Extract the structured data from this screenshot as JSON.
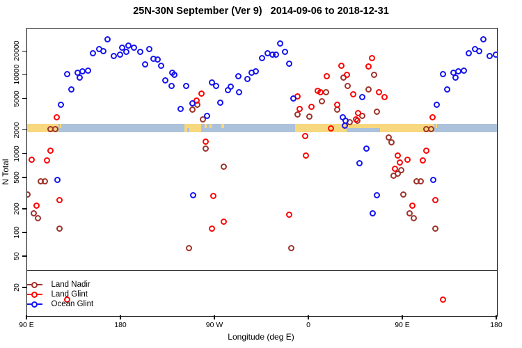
{
  "title": "25N-30N September (Ver 9)   2014-09-06 to 2018-12-31",
  "colors": {
    "land_nadir": "#9E332B",
    "land_glint": "#FB0404",
    "ocean_glint": "#1414F0",
    "band_land": "#F8D87E",
    "band_ocean": "#ACC2DB",
    "axis": "#111111",
    "reference_line": "#2a2a2a"
  },
  "legend": {
    "items": [
      {
        "label": "Land Nadir",
        "series": "land_nadir"
      },
      {
        "label": "Land Glint",
        "series": "land_glint"
      },
      {
        "label": "Ocean Glint",
        "series": "ocean_glint"
      }
    ]
  },
  "chart_data": {
    "type": "scatter",
    "title": "25N-30N September (Ver 9)   2014-09-06 to 2018-12-31",
    "xlabel": "Longitude (deg E)",
    "ylabel": "N Total",
    "y_scale": "log",
    "ylim": [
      9,
      39000
    ],
    "x_axis_unwrapped_deg": [
      90,
      540
    ],
    "x_ticks": [
      {
        "u": 90,
        "label": "90 E"
      },
      {
        "u": 180,
        "label": "180"
      },
      {
        "u": 270,
        "label": "90 W"
      },
      {
        "u": 360,
        "label": "0"
      },
      {
        "u": 450,
        "label": "90 E"
      },
      {
        "u": 540,
        "label": "180"
      }
    ],
    "y_ticks": [
      20,
      50,
      100,
      200,
      500,
      1000,
      2000,
      5000,
      10000,
      20000
    ],
    "reference_line_n": 34,
    "note_points_90E_180_plotted_twice": true,
    "map_band": {
      "n_top": 2455,
      "n_bottom": 1905,
      "land_segments": [
        {
          "from": 90,
          "to": 120
        },
        {
          "from": 121,
          "to": 122.7,
          "half": "top"
        },
        {
          "from": 240.7,
          "to": 256.7
        },
        {
          "from": 260,
          "to": 262,
          "half": "top"
        },
        {
          "from": 264.7,
          "to": 266.7,
          "half": "top"
        },
        {
          "from": 276,
          "to": 278.7,
          "half": "top"
        },
        {
          "from": 346.7,
          "to": 480
        },
        {
          "from": 481,
          "to": 482.7,
          "half": "top"
        }
      ],
      "ocean_cutouts": [
        {
          "from": 243.3,
          "to": 245.3,
          "half": "bottom"
        },
        {
          "from": 396,
          "to": 428,
          "half": "bottom"
        }
      ]
    },
    "series": [
      {
        "name": "Land Nadir",
        "color_key": "land_nadir",
        "points": [
          [
            112,
            2070
          ],
          [
            116.7,
            2070
          ],
          [
            103.3,
            450
          ],
          [
            106.7,
            450
          ],
          [
            90,
            312
          ],
          [
            96,
            180
          ],
          [
            100,
            156
          ],
          [
            121.3,
            113
          ],
          [
            -106.7,
            4210
          ],
          [
            -112,
            3650
          ],
          [
            -102,
            2800
          ],
          [
            -98.7,
            1170
          ],
          [
            -115.3,
            65
          ],
          [
            -82,
            703
          ],
          [
            -16.7,
            65
          ],
          [
            -11.3,
            3230
          ],
          [
            0,
            2980
          ],
          [
            62,
            10100
          ],
          [
            32.7,
            9480
          ],
          [
            36.7,
            7430
          ],
          [
            56.7,
            6710
          ],
          [
            16,
            6190
          ],
          [
            12,
            4660
          ],
          [
            26.7,
            3650
          ],
          [
            51.3,
            3100
          ],
          [
            46,
            2690
          ],
          [
            38.7,
            2540
          ],
          [
            65.3,
            3440
          ],
          [
            76,
            1620
          ],
          [
            78.7,
            1430
          ],
          [
            81.3,
            530
          ],
          [
            85.3,
            574
          ],
          [
            88,
            635
          ]
        ]
      },
      {
        "name": "Land Glint",
        "color_key": "land_glint",
        "points": [
          [
            118,
            2920
          ],
          [
            112,
            1120
          ],
          [
            108.7,
            828
          ],
          [
            94,
            845
          ],
          [
            98.7,
            221
          ],
          [
            121.3,
            260
          ],
          [
            128,
            14.3
          ],
          [
            -103.3,
            5940
          ],
          [
            -108,
            4850
          ],
          [
            -98.7,
            1460
          ],
          [
            -92,
            294
          ],
          [
            -93.3,
            115
          ],
          [
            -18.7,
            173
          ],
          [
            -82,
            141
          ],
          [
            -9.3,
            3800
          ],
          [
            -10.7,
            5480
          ],
          [
            -4,
            1720
          ],
          [
            -3.3,
            973
          ],
          [
            2,
            3960
          ],
          [
            8,
            6320
          ],
          [
            11.3,
            6190
          ],
          [
            16.7,
            9880
          ],
          [
            21.3,
            2150
          ],
          [
            26.7,
            4210
          ],
          [
            31.3,
            13400
          ],
          [
            36,
            10100
          ],
          [
            42,
            5710
          ],
          [
            45.3,
            2750
          ],
          [
            46.7,
            3300
          ],
          [
            56.7,
            12900
          ],
          [
            60,
            16700
          ],
          [
            66.7,
            6070
          ],
          [
            72,
            5370
          ],
          [
            82,
            649
          ],
          [
            85.3,
            973
          ],
          [
            86.7,
            794
          ]
        ]
      },
      {
        "name": "Ocean Glint",
        "color_key": "ocean_glint",
        "points": [
          [
            166.7,
            29000
          ],
          [
            158.7,
            21400
          ],
          [
            153.3,
            19300
          ],
          [
            163.3,
            20500
          ],
          [
            173.3,
            17500
          ],
          [
            178.7,
            18500
          ],
          [
            128,
            10500
          ],
          [
            138,
            10900
          ],
          [
            143.3,
            11200
          ],
          [
            140,
            9480
          ],
          [
            148,
            11600
          ],
          [
            132,
            6710
          ],
          [
            122,
            4210
          ],
          [
            118.7,
            478
          ],
          [
            -178.7,
            22300
          ],
          [
            -173.3,
            23700
          ],
          [
            -168,
            22700
          ],
          [
            -175.3,
            20100
          ],
          [
            -162,
            20100
          ],
          [
            -153.3,
            21400
          ],
          [
            -156.7,
            13700
          ],
          [
            -148.7,
            16400
          ],
          [
            -144.7,
            15800
          ],
          [
            -142,
            13400
          ],
          [
            -131.3,
            10900
          ],
          [
            -128.7,
            10100
          ],
          [
            -138,
            8570
          ],
          [
            -132,
            7430
          ],
          [
            -118,
            7430
          ],
          [
            -93.3,
            8220
          ],
          [
            -88.7,
            7430
          ],
          [
            -112,
            4390
          ],
          [
            -123.3,
            3800
          ],
          [
            -98,
            3100
          ],
          [
            -111.3,
            300
          ],
          [
            -28,
            25200
          ],
          [
            -40,
            19300
          ],
          [
            -35.3,
            18500
          ],
          [
            -32,
            18500
          ],
          [
            -23.3,
            20100
          ],
          [
            -44.7,
            16700
          ],
          [
            -18.7,
            14200
          ],
          [
            -51.3,
            11200
          ],
          [
            -54.7,
            10900
          ],
          [
            -68,
            9880
          ],
          [
            -58.7,
            9100
          ],
          [
            -74.7,
            7280
          ],
          [
            -78,
            6580
          ],
          [
            -66.7,
            6070
          ],
          [
            -84.7,
            4480
          ],
          [
            -14.7,
            5150
          ],
          [
            51.3,
            5370
          ],
          [
            32,
            2920
          ],
          [
            35.3,
            2640
          ],
          [
            34,
            2330
          ],
          [
            54.7,
            1170
          ],
          [
            48,
            778
          ],
          [
            64.7,
            300
          ],
          [
            61.3,
            180
          ]
        ]
      }
    ]
  }
}
